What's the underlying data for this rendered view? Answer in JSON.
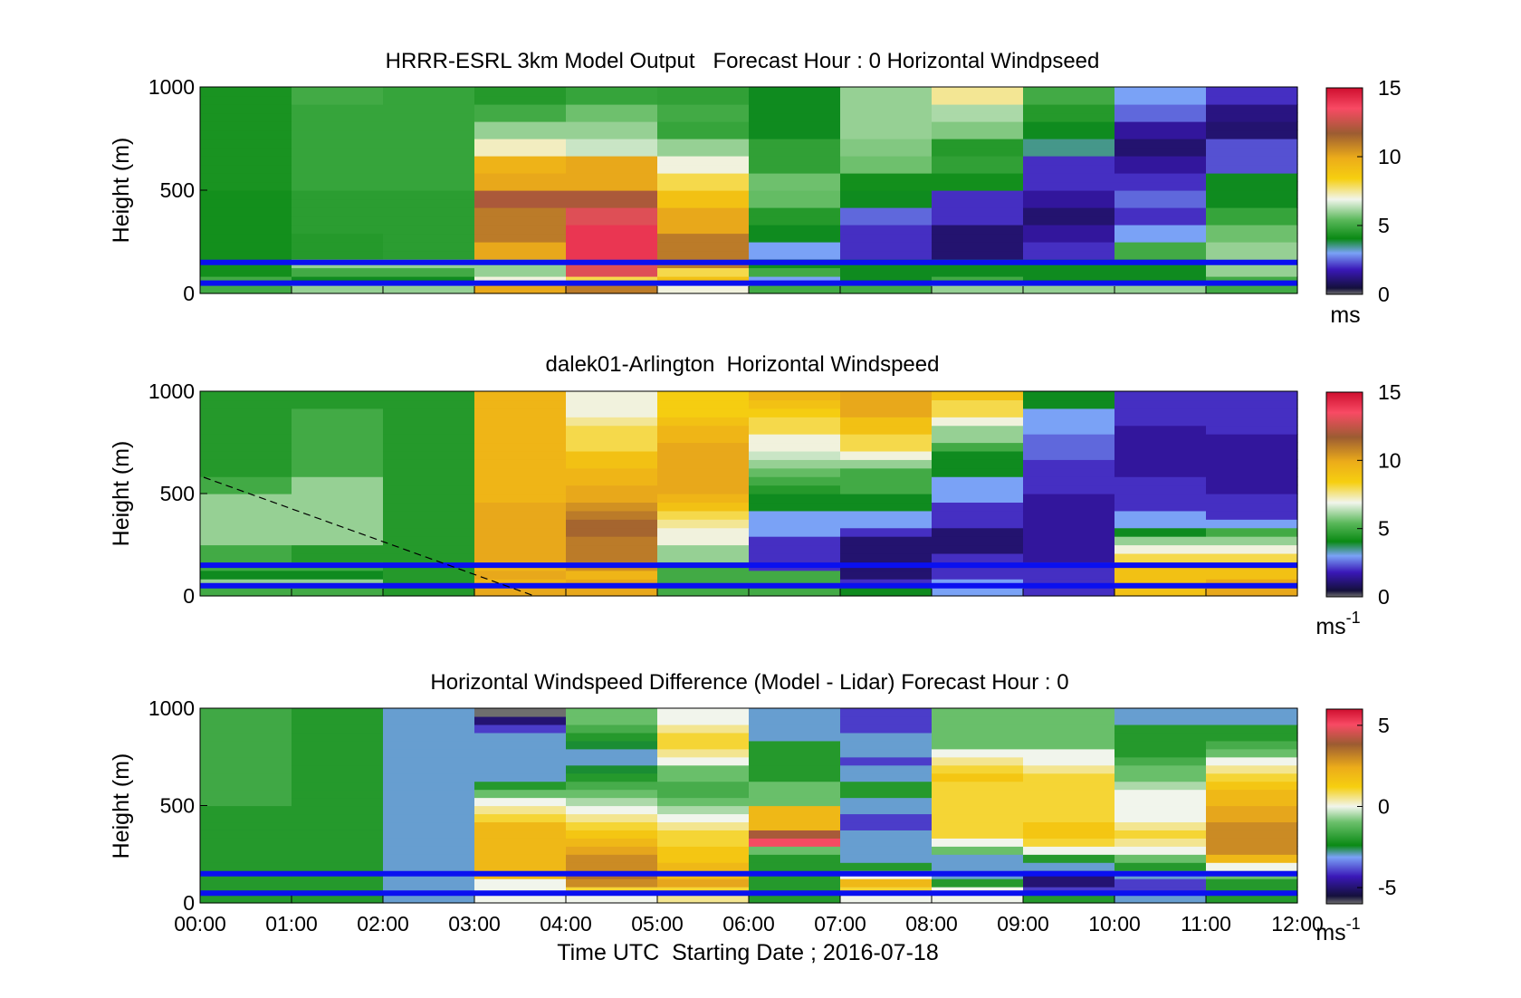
{
  "chart_data": [
    {
      "type": "heatmap",
      "title": "HRRR-ESRL 3km Model Output   Forecast Hour : 0 Horizontal Windpseed",
      "xlabel": "",
      "ylabel": "Height (m)",
      "ylim": [
        0,
        1000
      ],
      "yticks": [
        "0",
        "500",
        "1000"
      ],
      "x_hours": [
        0,
        12
      ],
      "colorbar": {
        "min": 0,
        "max": 15,
        "ticks": [
          "0",
          "5",
          "10",
          "15"
        ],
        "unit": "ms"
      },
      "blue_lines_height_m": [
        150,
        50
      ],
      "columns": [
        [
          5,
          5,
          4.2,
          4.2,
          4.2,
          4.2,
          4.2,
          4.2,
          4.2,
          4.2,
          4.2,
          4.2,
          4.3,
          4.3,
          4.3,
          4.3,
          4.3,
          4.3,
          4.3,
          4.3,
          4.3,
          4.3,
          4.3,
          4.3
        ],
        [
          6,
          4,
          5,
          6,
          4.5,
          4.5,
          4.5,
          4.6,
          4.6,
          4.6,
          4.6,
          4.6,
          4.8,
          4.8,
          4.8,
          4.8,
          4.8,
          4.8,
          4.8,
          4.8,
          4.8,
          4.8,
          5,
          5
        ],
        [
          6,
          4,
          5,
          6,
          4.6,
          4.6,
          4.6,
          4.6,
          4.6,
          4.6,
          4.6,
          4.6,
          4.8,
          4.8,
          4.8,
          4.8,
          4.8,
          4.8,
          4.8,
          4.8,
          4.8,
          4.8,
          4.8,
          4.8
        ],
        [
          10,
          7,
          6,
          6,
          10,
          10,
          11,
          11,
          11,
          11,
          12,
          12,
          10,
          10,
          9.6,
          9.6,
          7.2,
          7.2,
          6,
          6,
          5,
          5,
          4.5,
          4.5
        ],
        [
          11,
          8,
          13,
          13,
          14,
          14,
          14,
          14,
          13,
          13,
          12,
          12,
          10,
          10,
          10,
          10,
          6.5,
          6.5,
          6,
          6,
          5.6,
          5.6,
          4.8,
          4.8
        ],
        [
          7,
          9,
          8,
          11,
          11,
          11,
          11,
          10,
          10,
          10,
          9,
          9,
          8,
          8,
          7,
          7,
          6,
          6,
          4.8,
          4.8,
          5,
          5,
          4.7,
          4.7
        ],
        [
          5,
          3,
          5,
          4,
          3,
          3,
          4,
          4,
          4.5,
          4.5,
          5.5,
          5.5,
          5.6,
          5.6,
          4.7,
          4.7,
          4.7,
          4.7,
          4,
          4,
          4,
          4,
          4,
          4
        ],
        [
          5,
          4,
          4,
          4,
          2,
          2,
          2,
          2,
          2.5,
          2.5,
          4,
          4,
          4.2,
          4.2,
          5.6,
          5.6,
          5.8,
          5.8,
          6,
          6,
          6,
          6,
          6,
          6
        ],
        [
          6,
          5,
          4,
          4,
          1,
          1,
          1,
          1,
          2,
          2,
          2,
          2,
          4.2,
          4.2,
          4.7,
          4.7,
          4.5,
          4.5,
          5.8,
          5.8,
          6.2,
          6.2,
          7.5,
          7.5
        ],
        [
          6,
          4,
          4,
          4,
          2,
          2,
          1.5,
          1.5,
          1,
          1,
          1.5,
          1.5,
          2,
          2,
          2,
          2,
          3.5,
          3.5,
          4,
          4,
          4.5,
          4.5,
          5,
          5
        ],
        [
          6,
          4,
          4,
          4,
          5,
          5,
          3,
          3,
          2,
          2,
          2.5,
          2.5,
          2,
          2,
          1.5,
          1.5,
          1,
          1,
          1.5,
          1.5,
          2.5,
          2.5,
          3,
          3
        ],
        [
          5,
          5,
          6,
          6,
          6,
          6,
          5.6,
          5.6,
          4.8,
          4.8,
          4,
          4,
          4,
          4,
          2.3,
          2.3,
          2.3,
          2.3,
          1,
          1,
          1.2,
          1.2,
          2,
          2
        ]
      ]
    },
    {
      "type": "heatmap",
      "title": "dalek01-Arlington  Horizontal Windspeed",
      "xlabel": "",
      "ylabel": "Height (m)",
      "ylim": [
        0,
        1000
      ],
      "yticks": [
        "0",
        "500",
        "1000"
      ],
      "x_hours": [
        0,
        12
      ],
      "colorbar": {
        "min": 0,
        "max": 15,
        "ticks": [
          "0",
          "5",
          "10",
          "15"
        ],
        "unit": "ms",
        "unit_exp": "-1"
      },
      "blue_lines_height_m": [
        150,
        50
      ],
      "columns": [
        [
          5,
          6,
          4,
          5,
          5,
          5,
          6,
          6,
          6,
          6,
          6,
          6,
          5,
          5,
          4.5,
          4.5,
          4.5,
          4.5,
          4.5,
          4.5,
          4.5,
          4.5,
          4.5,
          4.5
        ],
        [
          5,
          6,
          4,
          5,
          4.5,
          4.5,
          6,
          6,
          6,
          6,
          6,
          6,
          6,
          6,
          5,
          5,
          5,
          5,
          5,
          5,
          5,
          5,
          4.5,
          4.5
        ],
        [
          4.5,
          4.5,
          4.5,
          4.5,
          4.5,
          4.5,
          4.5,
          4.5,
          4.5,
          4.5,
          4.5,
          4.5,
          4.5,
          4.5,
          4.5,
          4.5,
          4.5,
          4.5,
          4.5,
          4.5,
          4.5,
          4.5,
          4.5,
          4.5
        ],
        [
          10,
          9.5,
          10,
          9.5,
          10,
          10,
          10,
          10,
          10,
          10,
          10,
          9.5,
          9.5,
          9.5,
          9.5,
          9.5,
          9.5,
          9.5,
          9.5,
          9.5,
          9.5,
          9.5,
          9.5,
          9.5
        ],
        [
          10,
          10,
          9.5,
          10.5,
          11,
          11,
          11,
          11.5,
          11.5,
          11,
          10.5,
          10,
          10,
          9.5,
          9.5,
          9,
          9,
          8,
          8,
          8,
          7.5,
          7,
          7,
          7
        ],
        [
          5,
          5,
          5,
          5,
          6,
          6,
          7,
          7,
          7.5,
          8,
          9,
          9.5,
          10,
          10,
          10,
          10,
          10,
          10,
          9.5,
          9.5,
          9,
          8.5,
          8.5,
          8.5
        ],
        [
          5,
          5,
          5,
          2,
          2,
          2,
          2,
          3,
          3,
          3,
          4,
          4,
          4.5,
          5,
          5.5,
          6,
          6.5,
          7,
          7,
          8,
          8,
          8.5,
          9,
          9.5
        ],
        [
          4,
          2,
          1,
          1,
          1,
          1,
          1,
          2,
          3,
          3,
          4,
          4,
          5,
          5,
          5,
          6,
          7,
          8,
          8,
          9,
          9,
          10,
          10,
          10
        ],
        [
          3,
          3,
          2,
          2,
          2,
          1,
          1,
          1,
          2,
          2,
          2,
          3,
          3,
          3,
          4,
          4,
          4,
          5,
          6,
          6,
          7,
          8,
          8,
          9
        ],
        [
          2,
          2,
          2,
          2,
          1.5,
          1.5,
          1.5,
          1.5,
          1.5,
          1.5,
          1.5,
          1.5,
          2,
          2,
          2,
          2,
          2.5,
          2.5,
          2.5,
          3,
          3,
          3,
          4,
          4
        ],
        [
          9,
          9,
          9,
          9,
          8,
          7,
          6,
          4,
          3,
          3,
          2,
          2,
          2,
          2,
          1.5,
          1.5,
          1.5,
          1.5,
          1.5,
          1.5,
          2,
          2,
          2,
          2
        ],
        [
          10,
          10,
          9,
          9,
          8,
          7,
          6,
          5,
          3,
          2,
          2,
          2,
          1.5,
          1.5,
          1.5,
          1.5,
          1.5,
          1.5,
          1.5,
          2,
          2,
          2,
          2,
          2
        ]
      ]
    },
    {
      "type": "heatmap",
      "title": "Horizontal Windspeed Difference (Model - Lidar) Forecast Hour : 0",
      "xlabel": "Time UTC  Starting Date ; 2016-07-18",
      "ylabel": "Height (m)",
      "ylim": [
        0,
        1000
      ],
      "yticks": [
        "0",
        "500",
        "1000"
      ],
      "xticks": [
        "00:00",
        "01:00",
        "02:00",
        "03:00",
        "04:00",
        "05:00",
        "06:00",
        "07:00",
        "08:00",
        "09:00",
        "10:00",
        "11:00",
        "12:00"
      ],
      "x_hours": [
        0,
        12
      ],
      "colorbar": {
        "min": -6,
        "max": 6,
        "ticks": [
          "-5",
          "0",
          "5"
        ],
        "unit": "ms",
        "unit_exp": "-1"
      },
      "blue_lines_height_m": [
        150,
        50
      ],
      "columns": [
        [
          -2,
          -2,
          -2,
          -2,
          -2,
          -2,
          -2,
          -2,
          -2,
          -2,
          -2,
          -2,
          -1.6,
          -1.6,
          -1.6,
          -1.6,
          -1.6,
          -1.6,
          -1.6,
          -1.6,
          -1.6,
          -1.6,
          -1.6,
          -1.6
        ],
        [
          -2,
          -2,
          -2,
          -2,
          -2,
          -2,
          -2,
          -2,
          -2,
          -2,
          -2,
          -2,
          -2,
          -2,
          -2,
          -2,
          -2,
          -2,
          -2,
          -2,
          -2,
          -2,
          -2,
          -2
        ],
        [
          -3,
          -3,
          -3,
          -3,
          -3,
          -3,
          -3,
          -3,
          -3,
          -3,
          -3,
          -3,
          -3,
          -3,
          -3,
          -3,
          -3,
          -3,
          -3,
          -3,
          -3,
          -3,
          -3,
          -3
        ],
        [
          0,
          0,
          0,
          2,
          2,
          2,
          2,
          2,
          2,
          2,
          1,
          0.5,
          0,
          -1,
          -2,
          -3,
          -3,
          -3,
          -3,
          -3,
          -3,
          -4,
          -5,
          -6
        ],
        [
          0,
          1,
          3,
          3.5,
          3,
          3,
          2.5,
          2,
          1.5,
          1,
          0.5,
          0,
          -0.5,
          -1,
          -1.5,
          -2,
          -2.5,
          -3,
          -3,
          -2.5,
          -2,
          -1.5,
          -1,
          -1
        ],
        [
          0.5,
          1,
          2.5,
          2,
          2,
          1.5,
          1.5,
          1,
          1,
          0.5,
          0,
          -0.5,
          -1,
          -1.5,
          -1.5,
          -1,
          -1,
          0,
          0.5,
          1,
          1,
          0.5,
          0,
          0
        ],
        [
          -2,
          -2,
          -2,
          -2,
          -2,
          -2,
          -1,
          5,
          4,
          2,
          2,
          2,
          -1,
          -1,
          -1,
          -2,
          -2,
          -2,
          -2,
          -2,
          -3,
          -3,
          -3,
          -3
        ],
        [
          0,
          1,
          2,
          0,
          -2,
          -3,
          -3,
          -3,
          -3,
          -4,
          -4,
          -3,
          -3,
          -2,
          -2,
          -3,
          -3,
          -4,
          -3,
          -3,
          -3,
          -4,
          -4,
          -4
        ],
        [
          0,
          0,
          -2,
          -3,
          -3,
          -3,
          -1,
          0,
          1,
          1,
          1,
          1,
          1,
          1,
          1,
          1.5,
          1,
          0.5,
          0,
          -1,
          -1,
          -1,
          -1,
          -1
        ],
        [
          -2,
          -4,
          -5,
          -5,
          -3,
          -2,
          0,
          1,
          1.5,
          1.5,
          1,
          1,
          1,
          1,
          1,
          1,
          0.5,
          0,
          0,
          -1,
          -1,
          -1,
          -1,
          -1
        ],
        [
          -3,
          -4,
          -4,
          -3,
          -2,
          -1,
          0,
          0.5,
          1,
          0.5,
          0,
          0,
          0,
          0,
          -0.5,
          -1,
          -1,
          -1.5,
          -2,
          -2,
          -2,
          -2,
          -3,
          -3
        ],
        [
          -2,
          -2,
          -2,
          -1,
          0,
          2,
          3,
          3,
          3,
          3,
          2.5,
          2.5,
          2,
          2,
          1.5,
          1,
          0.5,
          0,
          -1,
          -1.5,
          -2,
          -2,
          -3,
          -3
        ]
      ]
    }
  ]
}
